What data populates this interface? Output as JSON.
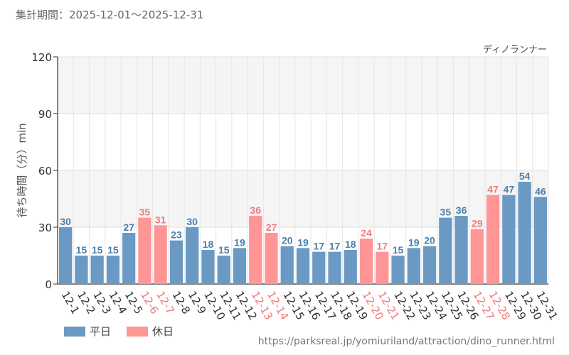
{
  "period_text": "集計期間：2025-12-01～2025-12-31",
  "source_url": "https://parksreal.jp/yomiuriland/attraction/dino_runner.html",
  "chart_data": {
    "type": "bar",
    "title": "ディノランナー",
    "ylabel": "待ち時間（分）min",
    "ylim": [
      0,
      120
    ],
    "yticks": [
      0,
      30,
      60,
      90,
      120
    ],
    "categories": [
      "12-1",
      "12-2",
      "12-3",
      "12-4",
      "12-5",
      "12-6",
      "12-7",
      "12-8",
      "12-9",
      "12-10",
      "12-11",
      "12-12",
      "12-13",
      "12-14",
      "12-15",
      "12-16",
      "12-17",
      "12-18",
      "12-19",
      "12-20",
      "12-21",
      "12-22",
      "12-23",
      "12-24",
      "12-25",
      "12-26",
      "12-27",
      "12-28",
      "12-29",
      "12-30",
      "12-31"
    ],
    "values": [
      30,
      15,
      15,
      15,
      27,
      35,
      31,
      23,
      30,
      18,
      15,
      19,
      36,
      27,
      20,
      19,
      17,
      17,
      18,
      24,
      17,
      15,
      19,
      20,
      35,
      36,
      29,
      47,
      47,
      54,
      46
    ],
    "day_types": [
      "weekday",
      "weekday",
      "weekday",
      "weekday",
      "weekday",
      "holiday",
      "holiday",
      "weekday",
      "weekday",
      "weekday",
      "weekday",
      "weekday",
      "holiday",
      "holiday",
      "weekday",
      "weekday",
      "weekday",
      "weekday",
      "weekday",
      "holiday",
      "holiday",
      "weekday",
      "weekday",
      "weekday",
      "weekday",
      "weekday",
      "holiday",
      "holiday",
      "weekday",
      "weekday",
      "weekday"
    ],
    "legend": [
      {
        "key": "weekday",
        "label": "平日",
        "color": "#6a9ac4",
        "label_color": "#4a7fae"
      },
      {
        "key": "holiday",
        "label": "休日",
        "color": "#ff9595",
        "label_color": "#f07a7a"
      }
    ]
  }
}
